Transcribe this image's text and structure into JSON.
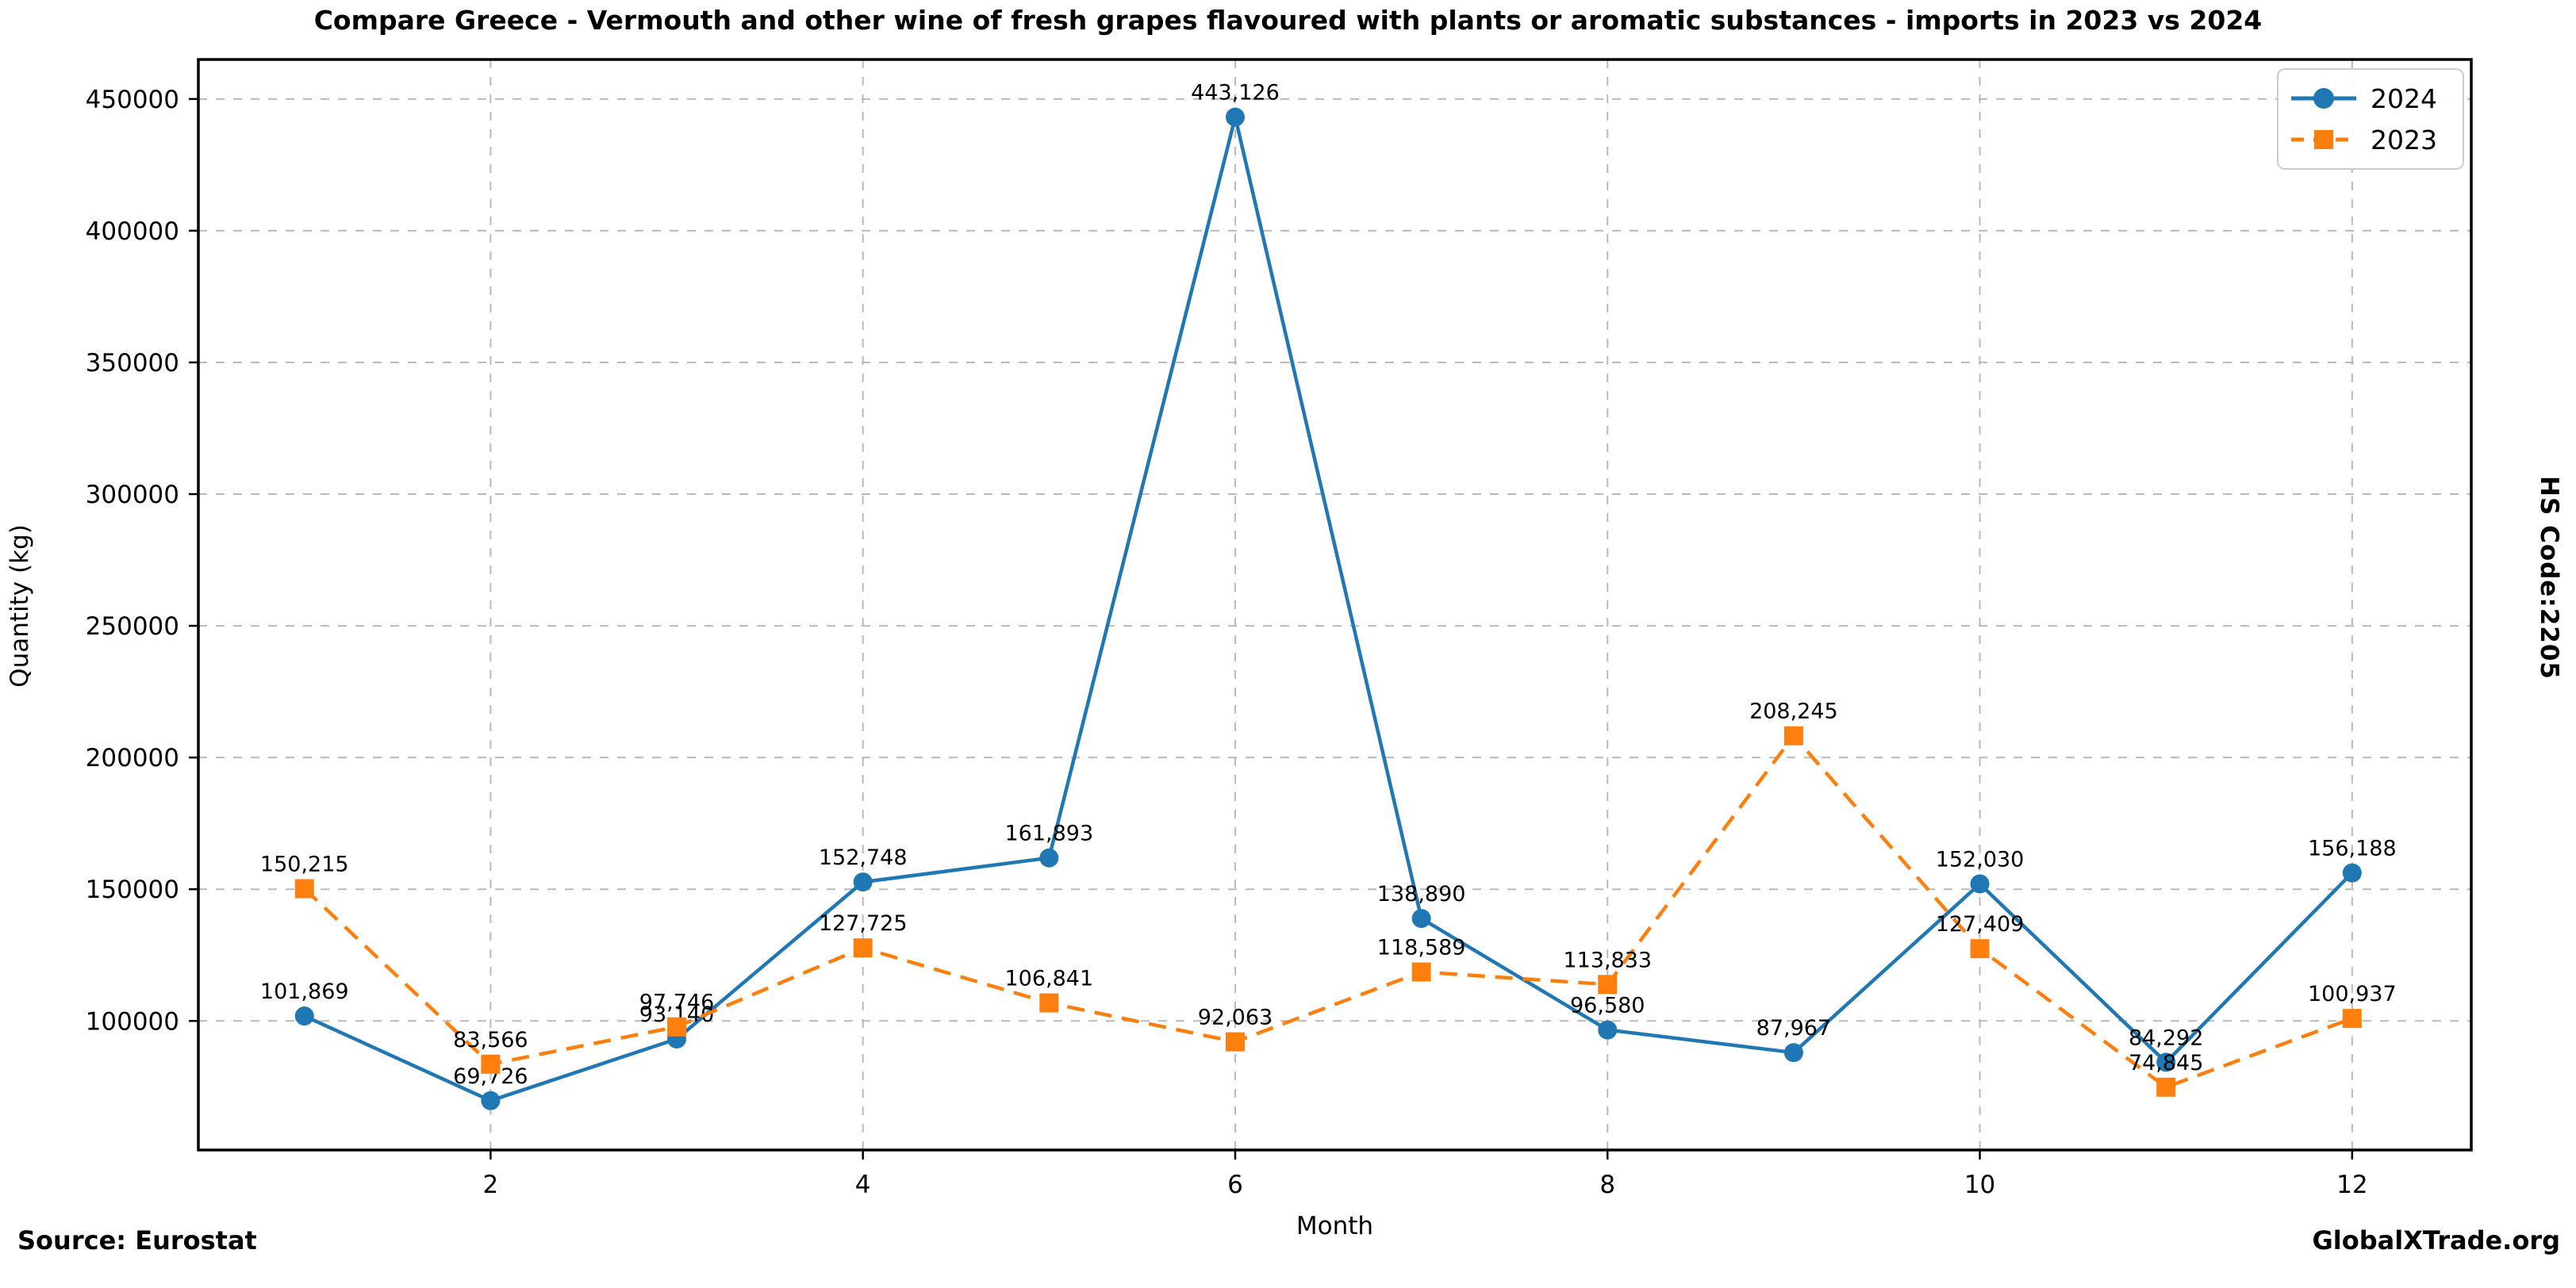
{
  "title": "Compare Greece - Vermouth and other wine of fresh grapes flavoured with plants or aromatic substances - imports in 2023 vs 2024",
  "side_note": "HS Code:2205",
  "footer": {
    "source": "Source: Eurostat",
    "brand": "GlobalXTrade.org"
  },
  "chart_data": {
    "type": "line",
    "title": "Compare Greece - Vermouth and other wine of fresh grapes flavoured with plants or aromatic substances - imports in 2023 vs 2024",
    "xlabel": "Month",
    "ylabel": "Quantity (kg)",
    "x": [
      1,
      2,
      3,
      4,
      5,
      6,
      7,
      8,
      9,
      10,
      11,
      12
    ],
    "series": [
      {
        "name": "2024",
        "color": "#1f77b4",
        "marker": "circle",
        "line_style": "solid",
        "values": [
          101869,
          69726,
          93140,
          152748,
          161893,
          443126,
          138890,
          96580,
          87967,
          152030,
          84292,
          156188
        ]
      },
      {
        "name": "2023",
        "color": "#ff7f0e",
        "marker": "square",
        "line_style": "dashed",
        "values": [
          150215,
          83566,
          97746,
          127725,
          106841,
          92063,
          118589,
          113833,
          208245,
          127409,
          74845,
          100937
        ]
      }
    ],
    "xticks": [
      2,
      4,
      6,
      8,
      10,
      12
    ],
    "yticks": [
      100000,
      150000,
      200000,
      250000,
      300000,
      350000,
      400000,
      450000
    ],
    "xlim": [
      0.43,
      12.64
    ],
    "ylim": [
      51000,
      465000
    ],
    "grid": true,
    "grid_color": "#b9b9b9",
    "legend_position": "upper right",
    "data_labels": true
  }
}
